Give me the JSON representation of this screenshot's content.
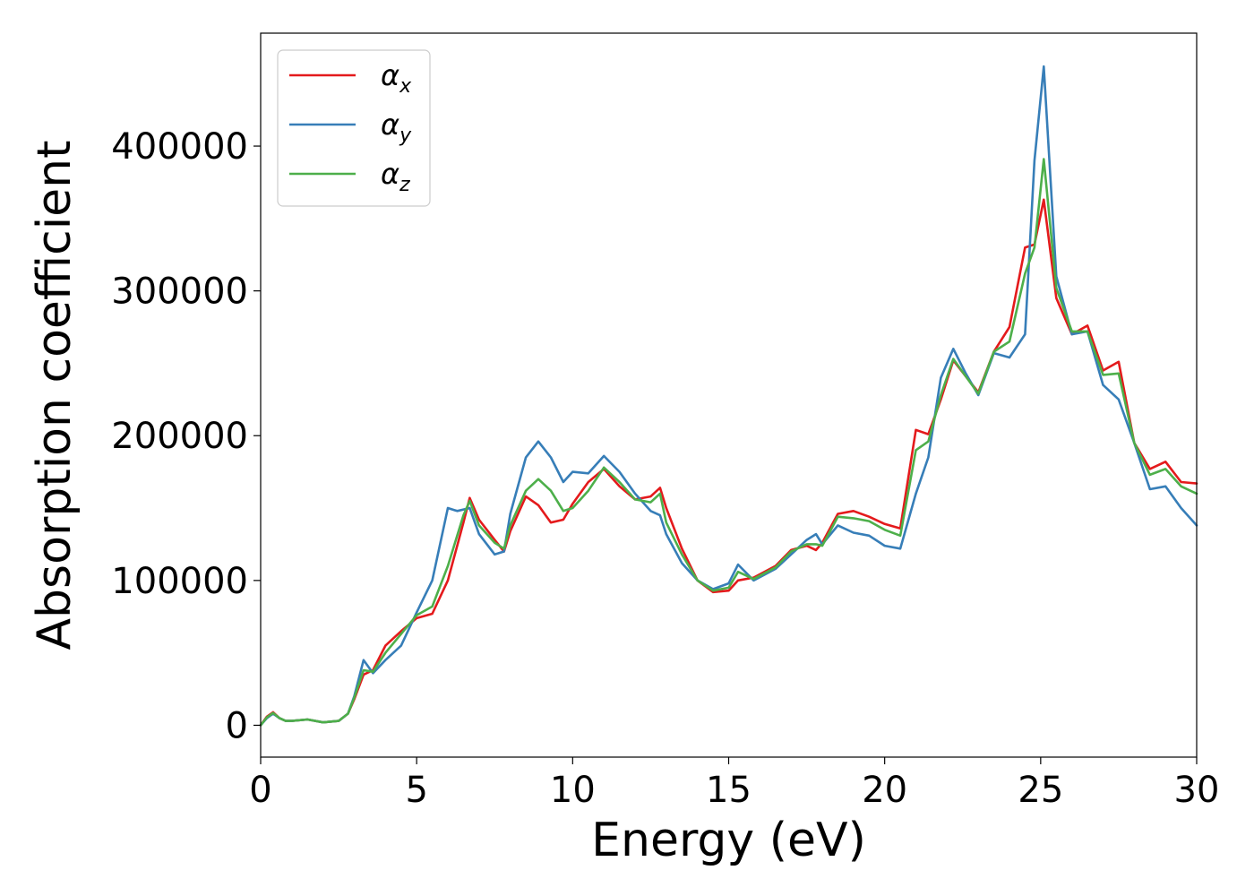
{
  "chart_data": {
    "type": "line",
    "title": "",
    "xlabel": "Energy (eV)",
    "ylabel": "Absorption coefficient",
    "xlim": [
      0,
      30
    ],
    "ylim": [
      -22000,
      478000
    ],
    "xticks": [
      "0",
      "5",
      "10",
      "15",
      "20",
      "25",
      "30"
    ],
    "yticks": [
      "0",
      "100000",
      "200000",
      "300000",
      "400000"
    ],
    "grid": false,
    "legend_position": "top-left",
    "series": [
      {
        "name": "αx",
        "symbol": "α",
        "subscript": "x",
        "color": "#e41a1c",
        "x": [
          0,
          0.2,
          0.4,
          0.6,
          0.8,
          1.0,
          1.5,
          2.0,
          2.5,
          2.8,
          3.0,
          3.3,
          3.6,
          4.0,
          4.5,
          5.0,
          5.5,
          6.0,
          6.5,
          6.7,
          7.0,
          7.5,
          7.8,
          8.0,
          8.5,
          8.9,
          9.3,
          9.7,
          10.0,
          10.5,
          11.0,
          11.5,
          12.0,
          12.5,
          12.8,
          13.0,
          13.5,
          14.0,
          14.5,
          15.0,
          15.3,
          15.8,
          16.5,
          17.0,
          17.5,
          17.8,
          18.0,
          18.5,
          19.0,
          19.5,
          20.0,
          20.5,
          21.0,
          21.4,
          21.8,
          22.2,
          22.6,
          23.0,
          23.5,
          24.0,
          24.5,
          24.8,
          25.1,
          25.5,
          26.0,
          26.5,
          27.0,
          27.5,
          28.0,
          28.5,
          29.0,
          29.5,
          30.0
        ],
        "y": [
          0,
          6000,
          9000,
          5000,
          3000,
          3000,
          4000,
          2000,
          3000,
          8000,
          18000,
          35000,
          38000,
          55000,
          65000,
          74000,
          77000,
          100000,
          140000,
          157000,
          142000,
          128000,
          120000,
          134000,
          158000,
          152000,
          140000,
          142000,
          153000,
          168000,
          177000,
          165000,
          156000,
          158000,
          164000,
          150000,
          122000,
          100000,
          92000,
          93000,
          100000,
          102000,
          110000,
          121000,
          124000,
          121000,
          126000,
          146000,
          148000,
          144000,
          139000,
          136000,
          204000,
          201000,
          225000,
          252000,
          241000,
          230000,
          258000,
          275000,
          330000,
          332000,
          363000,
          295000,
          270000,
          276000,
          245000,
          251000,
          195000,
          177000,
          182000,
          168000,
          167000
        ]
      },
      {
        "name": "αy",
        "symbol": "α",
        "subscript": "y",
        "color": "#377eb8",
        "x": [
          0,
          0.2,
          0.4,
          0.6,
          0.8,
          1.0,
          1.5,
          2.0,
          2.5,
          2.8,
          3.0,
          3.3,
          3.6,
          4.0,
          4.5,
          5.0,
          5.5,
          6.0,
          6.3,
          6.7,
          7.0,
          7.5,
          7.8,
          8.0,
          8.5,
          8.9,
          9.3,
          9.7,
          10.0,
          10.5,
          11.0,
          11.5,
          12.0,
          12.5,
          12.8,
          13.0,
          13.5,
          14.0,
          14.5,
          15.0,
          15.3,
          15.8,
          16.5,
          17.0,
          17.5,
          17.8,
          18.0,
          18.5,
          19.0,
          19.5,
          20.0,
          20.5,
          21.0,
          21.4,
          21.8,
          22.2,
          22.6,
          23.0,
          23.5,
          24.0,
          24.5,
          24.8,
          25.1,
          25.5,
          26.0,
          26.5,
          27.0,
          27.5,
          28.0,
          28.5,
          29.0,
          29.5,
          30.0
        ],
        "y": [
          0,
          5000,
          8000,
          5000,
          3000,
          3000,
          4000,
          2000,
          3000,
          8000,
          20000,
          45000,
          36000,
          45000,
          55000,
          78000,
          100000,
          150000,
          148000,
          150000,
          132000,
          118000,
          120000,
          146000,
          185000,
          196000,
          185000,
          168000,
          175000,
          174000,
          186000,
          175000,
          160000,
          148000,
          145000,
          132000,
          112000,
          100000,
          94000,
          98000,
          111000,
          100000,
          108000,
          118000,
          128000,
          132000,
          125000,
          138000,
          133000,
          131000,
          124000,
          122000,
          160000,
          185000,
          240000,
          260000,
          243000,
          228000,
          257000,
          254000,
          270000,
          390000,
          455000,
          310000,
          270000,
          272000,
          235000,
          225000,
          195000,
          163000,
          165000,
          150000,
          138000
        ]
      },
      {
        "name": "αz",
        "symbol": "α",
        "subscript": "z",
        "color": "#4daf4a",
        "x": [
          0,
          0.2,
          0.4,
          0.6,
          0.8,
          1.0,
          1.5,
          2.0,
          2.5,
          2.8,
          3.0,
          3.3,
          3.6,
          4.0,
          4.5,
          5.0,
          5.5,
          6.0,
          6.5,
          6.7,
          7.0,
          7.5,
          7.8,
          8.0,
          8.5,
          8.9,
          9.3,
          9.7,
          10.0,
          10.5,
          11.0,
          11.5,
          12.0,
          12.5,
          12.8,
          13.0,
          13.5,
          14.0,
          14.5,
          15.0,
          15.3,
          15.8,
          16.5,
          17.0,
          17.5,
          17.8,
          18.0,
          18.5,
          19.0,
          19.5,
          20.0,
          20.5,
          21.0,
          21.4,
          21.8,
          22.2,
          22.6,
          23.0,
          23.5,
          24.0,
          24.5,
          24.8,
          25.1,
          25.5,
          26.0,
          26.5,
          27.0,
          27.5,
          28.0,
          28.5,
          29.0,
          29.5,
          30.0
        ],
        "y": [
          0,
          5500,
          8500,
          5000,
          3000,
          3000,
          4000,
          2000,
          3000,
          8000,
          19000,
          38000,
          37000,
          50000,
          63000,
          76000,
          82000,
          110000,
          145000,
          155000,
          138000,
          126000,
          122000,
          138000,
          162000,
          170000,
          162000,
          148000,
          150000,
          162000,
          178000,
          168000,
          156000,
          154000,
          160000,
          140000,
          118000,
          100000,
          93000,
          95000,
          106000,
          101000,
          109000,
          120000,
          125000,
          125000,
          124000,
          144000,
          143000,
          141000,
          135000,
          131000,
          190000,
          196000,
          228000,
          253000,
          241000,
          229000,
          258000,
          265000,
          312000,
          330000,
          391000,
          302000,
          272000,
          272000,
          242000,
          243000,
          195000,
          173000,
          177000,
          165000,
          160000
        ]
      }
    ]
  }
}
